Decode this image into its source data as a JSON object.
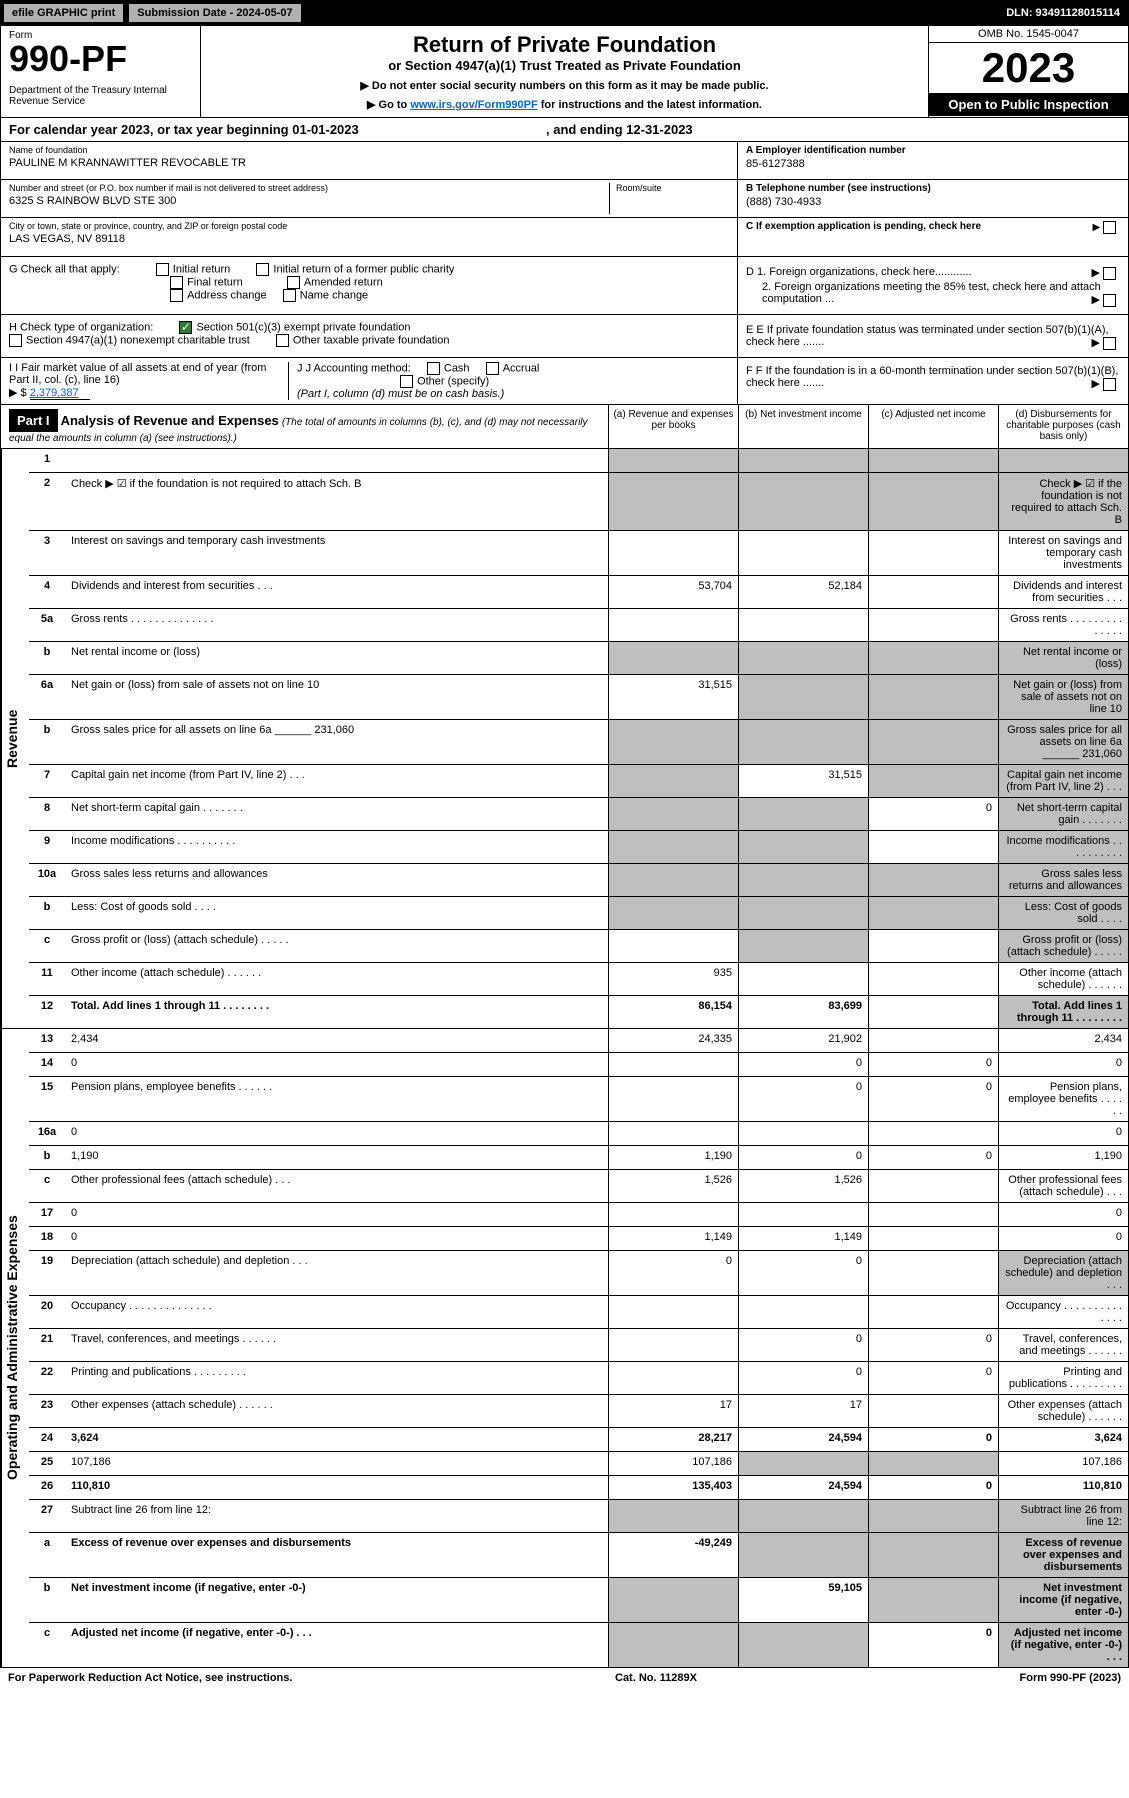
{
  "top": {
    "efile": "efile GRAPHIC print",
    "submission": "Submission Date - 2024-05-07",
    "dln": "DLN: 93491128015114"
  },
  "header": {
    "form_label": "Form",
    "form_num": "990-PF",
    "dept": "Department of the Treasury\nInternal Revenue Service",
    "title": "Return of Private Foundation",
    "subtitle": "or Section 4947(a)(1) Trust Treated as Private Foundation",
    "inst1": "▶ Do not enter social security numbers on this form as it may be made public.",
    "inst2_pre": "▶ Go to ",
    "inst2_link": "www.irs.gov/Form990PF",
    "inst2_post": " for instructions and the latest information.",
    "omb": "OMB No. 1545-0047",
    "year": "2023",
    "open": "Open to Public Inspection"
  },
  "calendar": {
    "text_pre": "For calendar year 2023, or tax year beginning ",
    "begin": "01-01-2023",
    "text_mid": " , and ending ",
    "end": "12-31-2023"
  },
  "info": {
    "name_label": "Name of foundation",
    "name": "PAULINE M KRANNAWITTER REVOCABLE TR",
    "addr_label": "Number and street (or P.O. box number if mail is not delivered to street address)",
    "addr": "6325 S RAINBOW BLVD STE 300",
    "room_label": "Room/suite",
    "city_label": "City or town, state or province, country, and ZIP or foreign postal code",
    "city": "LAS VEGAS, NV  89118",
    "ein_label": "A Employer identification number",
    "ein": "85-6127388",
    "phone_label": "B Telephone number (see instructions)",
    "phone": "(888) 730-4933",
    "c_label": "C If exemption application is pending, check here"
  },
  "checks": {
    "g_label": "G Check all that apply:",
    "g_opts": [
      "Initial return",
      "Initial return of a former public charity",
      "Final return",
      "Amended return",
      "Address change",
      "Name change"
    ],
    "h_label": "H Check type of organization:",
    "h_opt1": "Section 501(c)(3) exempt private foundation",
    "h_opt2": "Section 4947(a)(1) nonexempt charitable trust",
    "h_opt3": "Other taxable private foundation",
    "i_label": "I Fair market value of all assets at end of year (from Part II, col. (c), line 16)",
    "i_value": "2,379,387",
    "j_label": "J Accounting method:",
    "j_opts": [
      "Cash",
      "Accrual",
      "Other (specify)"
    ],
    "j_note": "(Part I, column (d) must be on cash basis.)",
    "d1": "D 1. Foreign organizations, check here............",
    "d2": "2. Foreign organizations meeting the 85% test, check here and attach computation ...",
    "e": "E If private foundation status was terminated under section 507(b)(1)(A), check here .......",
    "f": "F If the foundation is in a 60-month termination under section 507(b)(1)(B), check here .......",
    "i_prefix": "▶ $"
  },
  "part1": {
    "label": "Part I",
    "title": "Analysis of Revenue and Expenses",
    "note": "(The total of amounts in columns (b), (c), and (d) may not necessarily equal the amounts in column (a) (see instructions).)",
    "col_a": "(a) Revenue and expenses per books",
    "col_b": "(b) Net investment income",
    "col_c": "(c) Adjusted net income",
    "col_d": "(d) Disbursements for charitable purposes (cash basis only)"
  },
  "side": {
    "revenue": "Revenue",
    "expenses": "Operating and Administrative Expenses"
  },
  "rows": {
    "r1": {
      "n": "1",
      "d": "",
      "a": "",
      "b": "",
      "c": "",
      "ga": true,
      "gb": true,
      "gc": true,
      "gd": true
    },
    "r2": {
      "n": "2",
      "d": "Check ▶ ☑ if the foundation is not required to attach Sch. B",
      "ga": true,
      "gb": true,
      "gc": true,
      "gd": true
    },
    "r3": {
      "n": "3",
      "d": "Interest on savings and temporary cash investments"
    },
    "r4": {
      "n": "4",
      "d": "Dividends and interest from securities . . .",
      "a": "53,704",
      "b": "52,184"
    },
    "r5a": {
      "n": "5a",
      "d": "Gross rents . . . . . . . . . . . . . ."
    },
    "r5b": {
      "n": "b",
      "d": "Net rental income or (loss)",
      "ga": true,
      "gb": true,
      "gc": true,
      "gd": true
    },
    "r6a": {
      "n": "6a",
      "d": "Net gain or (loss) from sale of assets not on line 10",
      "a": "31,515",
      "gb": true,
      "gc": true,
      "gd": true
    },
    "r6b": {
      "n": "b",
      "d": "Gross sales price for all assets on line 6a ______ 231,060",
      "ga": true,
      "gb": true,
      "gc": true,
      "gd": true
    },
    "r7": {
      "n": "7",
      "d": "Capital gain net income (from Part IV, line 2) . . .",
      "b": "31,515",
      "ga": true,
      "gc": true,
      "gd": true
    },
    "r8": {
      "n": "8",
      "d": "Net short-term capital gain . . . . . . .",
      "c": "0",
      "ga": true,
      "gb": true,
      "gd": true
    },
    "r9": {
      "n": "9",
      "d": "Income modifications . . . . . . . . . .",
      "ga": true,
      "gb": true,
      "gd": true
    },
    "r10a": {
      "n": "10a",
      "d": "Gross sales less returns and allowances",
      "ga": true,
      "gb": true,
      "gc": true,
      "gd": true
    },
    "r10b": {
      "n": "b",
      "d": "Less: Cost of goods sold . . . .",
      "ga": true,
      "gb": true,
      "gc": true,
      "gd": true
    },
    "r10c": {
      "n": "c",
      "d": "Gross profit or (loss) (attach schedule) . . . . .",
      "gb": true,
      "gd": true
    },
    "r11": {
      "n": "11",
      "d": "Other income (attach schedule) . . . . . .",
      "a": "935"
    },
    "r12": {
      "n": "12",
      "d": "Total. Add lines 1 through 11 . . . . . . . .",
      "a": "86,154",
      "b": "83,699",
      "gd": true,
      "bold": true
    },
    "r13": {
      "n": "13",
      "d": "2,434",
      "a": "24,335",
      "b": "21,902"
    },
    "r14": {
      "n": "14",
      "d": "0",
      "b": "0",
      "c": "0"
    },
    "r15": {
      "n": "15",
      "d": "Pension plans, employee benefits . . . . . .",
      "b": "0",
      "c": "0"
    },
    "r16a": {
      "n": "16a",
      "d": "0"
    },
    "r16b": {
      "n": "b",
      "d": "1,190",
      "a": "1,190",
      "b": "0",
      "c": "0"
    },
    "r16c": {
      "n": "c",
      "d": "Other professional fees (attach schedule) . . .",
      "a": "1,526",
      "b": "1,526"
    },
    "r17": {
      "n": "17",
      "d": "0"
    },
    "r18": {
      "n": "18",
      "d": "0",
      "a": "1,149",
      "b": "1,149"
    },
    "r19": {
      "n": "19",
      "d": "Depreciation (attach schedule) and depletion . . .",
      "a": "0",
      "b": "0",
      "gd": true
    },
    "r20": {
      "n": "20",
      "d": "Occupancy . . . . . . . . . . . . . ."
    },
    "r21": {
      "n": "21",
      "d": "Travel, conferences, and meetings . . . . . .",
      "b": "0",
      "c": "0"
    },
    "r22": {
      "n": "22",
      "d": "Printing and publications . . . . . . . . .",
      "b": "0",
      "c": "0"
    },
    "r23": {
      "n": "23",
      "d": "Other expenses (attach schedule) . . . . . .",
      "a": "17",
      "b": "17"
    },
    "r24": {
      "n": "24",
      "d": "3,624",
      "a": "28,217",
      "b": "24,594",
      "c": "0",
      "bold": true
    },
    "r25": {
      "n": "25",
      "d": "107,186",
      "a": "107,186",
      "gb": true,
      "gc": true
    },
    "r26": {
      "n": "26",
      "d": "110,810",
      "a": "135,403",
      "b": "24,594",
      "c": "0",
      "bold": true
    },
    "r27": {
      "n": "27",
      "d": "Subtract line 26 from line 12:",
      "ga": true,
      "gb": true,
      "gc": true,
      "gd": true
    },
    "r27a": {
      "n": "a",
      "d": "Excess of revenue over expenses and disbursements",
      "a": "-49,249",
      "gb": true,
      "gc": true,
      "gd": true,
      "bold": true
    },
    "r27b": {
      "n": "b",
      "d": "Net investment income (if negative, enter -0-)",
      "b": "59,105",
      "ga": true,
      "gc": true,
      "gd": true,
      "bold": true
    },
    "r27c": {
      "n": "c",
      "d": "Adjusted net income (if negative, enter -0-) . . .",
      "c": "0",
      "ga": true,
      "gb": true,
      "gd": true,
      "bold": true
    }
  },
  "footer": {
    "left": "For Paperwork Reduction Act Notice, see instructions.",
    "mid": "Cat. No. 11289X",
    "right": "Form 990-PF (2023)"
  },
  "colors": {
    "black": "#000000",
    "grey_btn": "#b0b0b0",
    "grey_cell": "#bfbfbf",
    "link": "#0066cc",
    "check_green": "#2e7d32"
  }
}
